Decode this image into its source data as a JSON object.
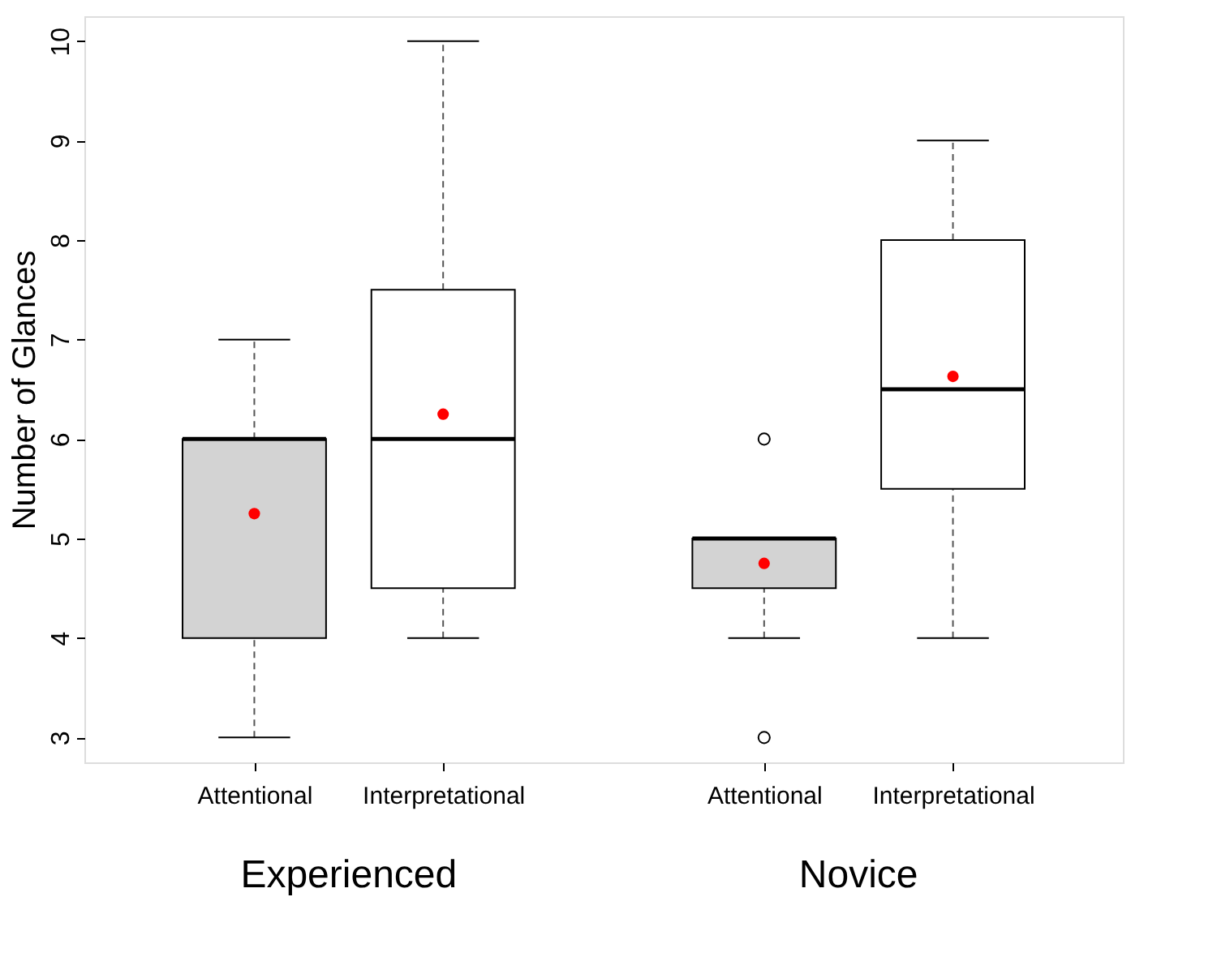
{
  "chart_data": {
    "type": "box",
    "ylabel": "Number of Glances",
    "categories": [
      "Attentional",
      "Interpretational",
      "Attentional",
      "Interpretational"
    ],
    "colors": [
      "#d3d3d3",
      "#ffffff",
      "#d3d3d3",
      "#ffffff"
    ],
    "boxes": [
      {
        "low": 3,
        "q1": 4,
        "median": 6,
        "q3": 6,
        "high": 7,
        "mean": 5.25
      },
      {
        "low": 4,
        "q1": 4.5,
        "median": 6,
        "q3": 7.5,
        "high": 10,
        "mean": 6.25
      },
      {
        "low": 4,
        "q1": 4.5,
        "median": 5,
        "q3": 5,
        "high": 5,
        "mean": 4.75,
        "outliers": [
          6,
          3
        ]
      },
      {
        "low": 4,
        "q1": 5.5,
        "median": 6.5,
        "q3": 8,
        "high": 9,
        "mean": 6.63
      }
    ],
    "ylim": [
      2.75,
      10.25
    ],
    "yticks": [
      3,
      4,
      5,
      6,
      7,
      8,
      9,
      10
    ],
    "grid": false,
    "annotations": [
      "Experienced",
      "Novice"
    ]
  }
}
